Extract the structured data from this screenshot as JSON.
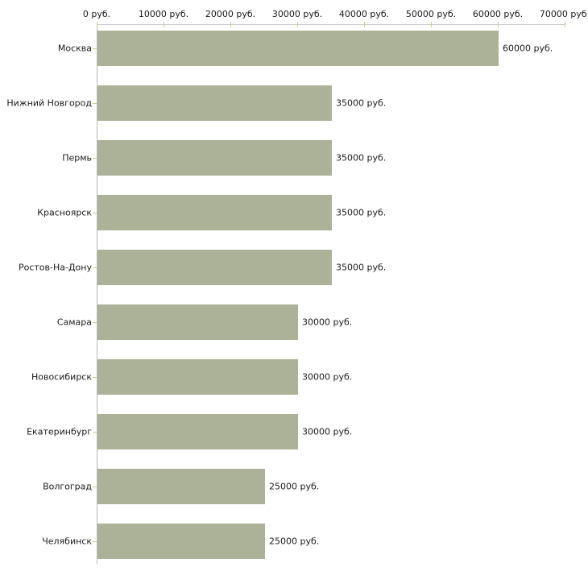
{
  "chart_data": {
    "type": "bar",
    "orientation": "horizontal",
    "title": "",
    "categories": [
      "Москва",
      "Нижний Новгород",
      "Пермь",
      "Красноярск",
      "Ростов-На-Дону",
      "Самара",
      "Новосибирск",
      "Екатеринбург",
      "Волгоград",
      "Челябинск"
    ],
    "values": [
      60000,
      35000,
      35000,
      35000,
      35000,
      30000,
      30000,
      30000,
      25000,
      25000
    ],
    "value_labels": [
      "60000 руб.",
      "35000 руб.",
      "35000 руб.",
      "35000 руб.",
      "35000 руб.",
      "30000 руб.",
      "30000 руб.",
      "30000 руб.",
      "25000 руб.",
      "25000 руб."
    ],
    "x_axis": {
      "position": "top",
      "range": [
        0,
        70000
      ],
      "ticks": [
        0,
        10000,
        20000,
        30000,
        40000,
        50000,
        60000,
        70000
      ],
      "tick_labels": [
        "0 руб.",
        "10000 руб.",
        "20000 руб.",
        "30000 руб.",
        "40000 руб.",
        "50000 руб.",
        "60000 руб.",
        "70000 руб."
      ]
    },
    "grid": false,
    "legend_position": "none",
    "colors": {
      "bar_fill": "#abb298",
      "axis_line": "#c9c9c9",
      "y_axis_line": "#b8b8b8",
      "tick_mark": "#c6cc8e",
      "text": "#1a1a1a",
      "background": "#ffffff"
    }
  }
}
